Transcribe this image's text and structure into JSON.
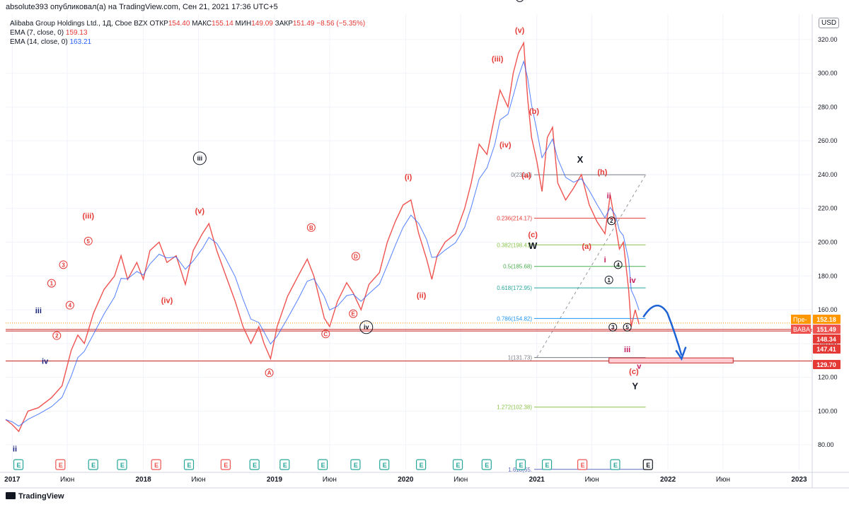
{
  "header": {
    "publisher": "absolute393 опубликовал(а) на TradingView.com, Сен 21, 2021 17:36 UTC+5"
  },
  "legend": {
    "symbol_line": "Alibaba Group Holdings Ltd., 1Д, Cboe BZX",
    "ohlc": {
      "open_label": "ОТКР",
      "open": "154.40",
      "high_label": "МАКС",
      "high": "155.14",
      "low_label": "МИН",
      "low": "149.09",
      "close_label": "ЗАКР",
      "close": "151.49",
      "change": "−8.56 (−5.35%)"
    },
    "ema7_label": "EMA (7, close, 0)",
    "ema7_value": "159.13",
    "ema14_label": "EMA (14, close, 0)",
    "ema14_value": "163.21"
  },
  "currency": "USD",
  "footer": {
    "brand": "TradingView"
  },
  "colors": {
    "price_up": "#26a69a",
    "price_down": "#ef5350",
    "ema7": "#e53935",
    "ema14": "#2962ff",
    "wave_red": "#e53935",
    "wave_black": "#131722",
    "wave_navy": "#1a237e",
    "wave_pink": "#c2185b"
  },
  "chart_data": {
    "type": "line",
    "title": "Alibaba Group Holdings Ltd., 1Д, Cboe BZX",
    "ylim": [
      65,
      335
    ],
    "y_ticks": [
      80,
      100,
      120,
      140,
      160,
      180,
      200,
      220,
      240,
      260,
      280,
      300,
      320
    ],
    "x_ticks": [
      "2017",
      "Июн",
      "2018",
      "Июн",
      "2019",
      "Июн",
      "2020",
      "Июн",
      "2021",
      "Июн",
      "2022",
      "Июн",
      "2023"
    ],
    "xlim_years": [
      2016.95,
      2023.1
    ],
    "series": [
      {
        "name": "BABA",
        "points": [
          [
            2016.95,
            95
          ],
          [
            2017.0,
            92
          ],
          [
            2017.05,
            88
          ],
          [
            2017.12,
            100
          ],
          [
            2017.2,
            102
          ],
          [
            2017.3,
            108
          ],
          [
            2017.38,
            115
          ],
          [
            2017.45,
            136
          ],
          [
            2017.5,
            145
          ],
          [
            2017.55,
            140
          ],
          [
            2017.62,
            158
          ],
          [
            2017.7,
            172
          ],
          [
            2017.78,
            180
          ],
          [
            2017.83,
            192
          ],
          [
            2017.88,
            178
          ],
          [
            2017.95,
            188
          ],
          [
            2018.0,
            178
          ],
          [
            2018.05,
            195
          ],
          [
            2018.12,
            200
          ],
          [
            2018.18,
            188
          ],
          [
            2018.25,
            192
          ],
          [
            2018.32,
            175
          ],
          [
            2018.38,
            195
          ],
          [
            2018.45,
            205
          ],
          [
            2018.5,
            211
          ],
          [
            2018.56,
            195
          ],
          [
            2018.62,
            182
          ],
          [
            2018.7,
            165
          ],
          [
            2018.76,
            150
          ],
          [
            2018.82,
            140
          ],
          [
            2018.88,
            150
          ],
          [
            2018.92,
            140
          ],
          [
            2018.97,
            131
          ],
          [
            2019.02,
            150
          ],
          [
            2019.1,
            168
          ],
          [
            2019.18,
            180
          ],
          [
            2019.25,
            190
          ],
          [
            2019.3,
            180
          ],
          [
            2019.38,
            155
          ],
          [
            2019.42,
            150
          ],
          [
            2019.48,
            165
          ],
          [
            2019.55,
            176
          ],
          [
            2019.6,
            170
          ],
          [
            2019.66,
            160
          ],
          [
            2019.72,
            175
          ],
          [
            2019.8,
            182
          ],
          [
            2019.86,
            200
          ],
          [
            2019.92,
            212
          ],
          [
            2019.98,
            222
          ],
          [
            2020.04,
            225
          ],
          [
            2020.1,
            205
          ],
          [
            2020.16,
            190
          ],
          [
            2020.2,
            178
          ],
          [
            2020.24,
            192
          ],
          [
            2020.3,
            200
          ],
          [
            2020.38,
            205
          ],
          [
            2020.45,
            220
          ],
          [
            2020.5,
            235
          ],
          [
            2020.56,
            258
          ],
          [
            2020.62,
            252
          ],
          [
            2020.68,
            275
          ],
          [
            2020.72,
            290
          ],
          [
            2020.78,
            280
          ],
          [
            2020.82,
            300
          ],
          [
            2020.86,
            312
          ],
          [
            2020.9,
            318
          ],
          [
            2020.93,
            285
          ],
          [
            2020.96,
            262
          ],
          [
            2021.0,
            248
          ],
          [
            2021.04,
            230
          ],
          [
            2021.08,
            262
          ],
          [
            2021.12,
            268
          ],
          [
            2021.16,
            235
          ],
          [
            2021.22,
            225
          ],
          [
            2021.28,
            232
          ],
          [
            2021.34,
            240
          ],
          [
            2021.4,
            222
          ],
          [
            2021.46,
            212
          ],
          [
            2021.52,
            205
          ],
          [
            2021.56,
            228
          ],
          [
            2021.6,
            210
          ],
          [
            2021.63,
            196
          ],
          [
            2021.66,
            200
          ],
          [
            2021.7,
            172
          ],
          [
            2021.72,
            150
          ],
          [
            2021.75,
            160
          ],
          [
            2021.78,
            151.49
          ]
        ]
      }
    ],
    "price_labels": [
      {
        "label": "Пре-",
        "value": "152.18",
        "y": 152.18,
        "color": "#ff9800"
      },
      {
        "label": "BABA",
        "value": "151.49",
        "y": 151.49,
        "color": "#ef5350"
      },
      {
        "label": "",
        "value": "148.34",
        "y": 148.34,
        "color": "#e53935"
      },
      {
        "label": "",
        "value": "147.41",
        "y": 147.41,
        "color": "#e53935"
      },
      {
        "label": "",
        "value": "129.70",
        "y": 129.7,
        "color": "#e53935"
      }
    ],
    "fib_levels": [
      {
        "label": "0(239.9)",
        "y": 239.9,
        "color": "#787b86"
      },
      {
        "label": "0.236(214.17)",
        "y": 214.17,
        "color": "#e53935"
      },
      {
        "label": "0.382(198.41)",
        "y": 198.41,
        "color": "#8bc34a"
      },
      {
        "label": "0.5(185.68)",
        "y": 185.68,
        "color": "#4caf50"
      },
      {
        "label": "0.618(172.95)",
        "y": 172.95,
        "color": "#26a69a"
      },
      {
        "label": "0.786(154.82)",
        "y": 154.82,
        "color": "#2196f3"
      },
      {
        "label": "1(131.73)",
        "y": 131.73,
        "color": "#787b86"
      },
      {
        "label": "1.272(102.38)",
        "y": 102.38,
        "color": "#8bc34a"
      },
      {
        "label": "1.618(65.",
        "y": 65.5,
        "color": "#5c6bc0"
      }
    ],
    "horizontal_lines": [
      148.34,
      147.41,
      129.7
    ],
    "wave_labels": [
      {
        "text": "ii",
        "x": 2017.02,
        "y": 76,
        "color": "#1a237e",
        "circle": false
      },
      {
        "text": "iii",
        "x": 2017.2,
        "y": 158,
        "color": "#1a237e",
        "circle": false
      },
      {
        "text": "iv",
        "x": 2017.25,
        "y": 128,
        "color": "#1a237e",
        "circle": false
      },
      {
        "text": "1",
        "x": 2017.3,
        "y": 174,
        "color": "#e53935",
        "circle": true
      },
      {
        "text": "2",
        "x": 2017.34,
        "y": 143,
        "color": "#e53935",
        "circle": true
      },
      {
        "text": "3",
        "x": 2017.39,
        "y": 185,
        "color": "#e53935",
        "circle": true
      },
      {
        "text": "4",
        "x": 2017.44,
        "y": 161,
        "color": "#e53935",
        "circle": true
      },
      {
        "text": "5",
        "x": 2017.58,
        "y": 199,
        "color": "#e53935",
        "circle": true
      },
      {
        "text": "(iii)",
        "x": 2017.58,
        "y": 214,
        "color": "#e53935",
        "circle": false
      },
      {
        "text": "(iv)",
        "x": 2018.18,
        "y": 164,
        "color": "#e53935",
        "circle": false
      },
      {
        "text": "(v)",
        "x": 2018.43,
        "y": 217,
        "color": "#e53935",
        "circle": false
      },
      {
        "text": "iii",
        "x": 2018.43,
        "y": 248,
        "color": "#131722",
        "circle": true
      },
      {
        "text": "A",
        "x": 2018.96,
        "y": 121,
        "color": "#e53935",
        "circle": true
      },
      {
        "text": "B",
        "x": 2019.28,
        "y": 207,
        "color": "#e53935",
        "circle": true
      },
      {
        "text": "C",
        "x": 2019.39,
        "y": 144,
        "color": "#e53935",
        "circle": true
      },
      {
        "text": "D",
        "x": 2019.62,
        "y": 190,
        "color": "#e53935",
        "circle": true
      },
      {
        "text": "E",
        "x": 2019.6,
        "y": 156,
        "color": "#e53935",
        "circle": true
      },
      {
        "text": "iv",
        "x": 2019.7,
        "y": 148,
        "color": "#131722",
        "circle": true
      },
      {
        "text": "(i)",
        "x": 2020.02,
        "y": 237,
        "color": "#e53935",
        "circle": false
      },
      {
        "text": "(ii)",
        "x": 2020.12,
        "y": 167,
        "color": "#e53935",
        "circle": false
      },
      {
        "text": "(iii)",
        "x": 2020.7,
        "y": 307,
        "color": "#e53935",
        "circle": false
      },
      {
        "text": "(iv)",
        "x": 2020.76,
        "y": 256,
        "color": "#e53935",
        "circle": false
      },
      {
        "text": "(v)",
        "x": 2020.87,
        "y": 324,
        "color": "#e53935",
        "circle": false
      },
      {
        "text": "v",
        "x": 2020.87,
        "y": 343,
        "color": "#131722",
        "circle": true
      },
      {
        "text": "(b)",
        "x": 2020.98,
        "y": 276,
        "color": "#e53935",
        "circle": false
      },
      {
        "text": "(a)",
        "x": 2020.92,
        "y": 238,
        "color": "#e53935",
        "circle": false
      },
      {
        "text": "(c)",
        "x": 2020.97,
        "y": 203,
        "color": "#e53935",
        "circle": false
      },
      {
        "text": "W",
        "x": 2020.97,
        "y": 196,
        "color": "#131722",
        "circle": false
      },
      {
        "text": "X",
        "x": 2021.33,
        "y": 247,
        "color": "#131722",
        "circle": false
      },
      {
        "text": "(h)",
        "x": 2021.5,
        "y": 240,
        "color": "#e53935",
        "circle": false
      },
      {
        "text": "(a)",
        "x": 2021.38,
        "y": 196,
        "color": "#e53935",
        "circle": false
      },
      {
        "text": "ii",
        "x": 2021.55,
        "y": 226,
        "color": "#c2185b",
        "circle": false
      },
      {
        "text": "i",
        "x": 2021.52,
        "y": 188,
        "color": "#c2185b",
        "circle": false
      },
      {
        "text": "2",
        "x": 2021.57,
        "y": 211,
        "color": "#131722",
        "circle": true
      },
      {
        "text": "4",
        "x": 2021.62,
        "y": 185,
        "color": "#131722",
        "circle": true
      },
      {
        "text": "1",
        "x": 2021.55,
        "y": 176,
        "color": "#131722",
        "circle": true
      },
      {
        "text": "iv",
        "x": 2021.73,
        "y": 176,
        "color": "#c2185b",
        "circle": false
      },
      {
        "text": "3",
        "x": 2021.58,
        "y": 148,
        "color": "#131722",
        "circle": true
      },
      {
        "text": "5",
        "x": 2021.69,
        "y": 148,
        "color": "#131722",
        "circle": true
      },
      {
        "text": "iii",
        "x": 2021.69,
        "y": 135,
        "color": "#c2185b",
        "circle": false
      },
      {
        "text": "(c)",
        "x": 2021.74,
        "y": 122,
        "color": "#e53935",
        "circle": false
      },
      {
        "text": "v",
        "x": 2021.78,
        "y": 125,
        "color": "#c2185b",
        "circle": false
      },
      {
        "text": "Y",
        "x": 2021.75,
        "y": 113,
        "color": "#131722",
        "circle": false
      }
    ],
    "event_markers": [
      {
        "type": "E",
        "x": 2017.05,
        "color": "#26a69a"
      },
      {
        "type": "E",
        "x": 2017.37,
        "color": "#ef5350"
      },
      {
        "type": "E",
        "x": 2017.62,
        "color": "#26a69a"
      },
      {
        "type": "E",
        "x": 2017.84,
        "color": "#26a69a"
      },
      {
        "type": "E",
        "x": 2018.1,
        "color": "#ef5350"
      },
      {
        "type": "E",
        "x": 2018.35,
        "color": "#26a69a"
      },
      {
        "type": "E",
        "x": 2018.63,
        "color": "#ef5350"
      },
      {
        "type": "E",
        "x": 2018.85,
        "color": "#26a69a"
      },
      {
        "type": "E",
        "x": 2019.08,
        "color": "#26a69a"
      },
      {
        "type": "E",
        "x": 2019.37,
        "color": "#26a69a"
      },
      {
        "type": "E",
        "x": 2019.62,
        "color": "#26a69a"
      },
      {
        "type": "E",
        "x": 2019.84,
        "color": "#26a69a"
      },
      {
        "type": "E",
        "x": 2020.12,
        "color": "#26a69a"
      },
      {
        "type": "E",
        "x": 2020.4,
        "color": "#26a69a"
      },
      {
        "type": "E",
        "x": 2020.62,
        "color": "#26a69a"
      },
      {
        "type": "E",
        "x": 2020.88,
        "color": "#26a69a"
      },
      {
        "type": "E",
        "x": 2021.08,
        "color": "#26a69a"
      },
      {
        "type": "E",
        "x": 2021.35,
        "color": "#ef5350"
      },
      {
        "type": "E",
        "x": 2021.6,
        "color": "#26a69a"
      },
      {
        "type": "E",
        "x": 2021.85,
        "color": "#131722"
      }
    ],
    "grid": true
  }
}
